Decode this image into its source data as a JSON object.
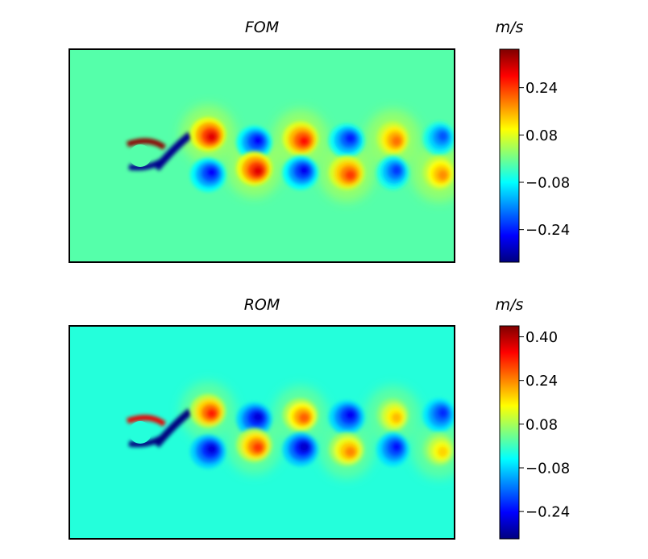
{
  "colorbar_colors": [
    "#00007f",
    "#0000ff",
    "#007fff",
    "#00ffff",
    "#7fff7f",
    "#ffff00",
    "#ff7f00",
    "#ff0000",
    "#7f0000"
  ],
  "chart_data": [
    {
      "type": "heatmap",
      "title": "FOM",
      "colorbar_label": "m/s",
      "colorbar_range": [
        -0.35,
        0.37
      ],
      "colorbar_ticks": [
        {
          "value": 0.24,
          "label": "0.24"
        },
        {
          "value": 0.08,
          "label": "0.08"
        },
        {
          "value": -0.08,
          "label": "−0.08"
        },
        {
          "value": -0.24,
          "label": "−0.24"
        }
      ],
      "background_value": -0.02,
      "wake_vortices": [
        {
          "x": 0.36,
          "y": 0.4,
          "value": 0.3
        },
        {
          "x": 0.36,
          "y": 0.59,
          "value": -0.26
        },
        {
          "x": 0.48,
          "y": 0.44,
          "value": -0.26
        },
        {
          "x": 0.48,
          "y": 0.56,
          "value": 0.3
        },
        {
          "x": 0.6,
          "y": 0.42,
          "value": 0.27
        },
        {
          "x": 0.6,
          "y": 0.58,
          "value": -0.27
        },
        {
          "x": 0.72,
          "y": 0.43,
          "value": -0.24
        },
        {
          "x": 0.72,
          "y": 0.58,
          "value": 0.24
        },
        {
          "x": 0.84,
          "y": 0.42,
          "value": 0.2
        },
        {
          "x": 0.84,
          "y": 0.58,
          "value": -0.22
        },
        {
          "x": 0.96,
          "y": 0.42,
          "value": -0.2
        },
        {
          "x": 0.96,
          "y": 0.58,
          "value": 0.18
        }
      ]
    },
    {
      "type": "heatmap",
      "title": "ROM",
      "colorbar_label": "m/s",
      "colorbar_range": [
        -0.34,
        0.44
      ],
      "colorbar_ticks": [
        {
          "value": 0.4,
          "label": "0.40"
        },
        {
          "value": 0.24,
          "label": "0.24"
        },
        {
          "value": 0.08,
          "label": "0.08"
        },
        {
          "value": -0.08,
          "label": "−0.08"
        },
        {
          "value": -0.24,
          "label": "−0.24"
        }
      ],
      "background_value": -0.02,
      "wake_vortices": [
        {
          "x": 0.36,
          "y": 0.4,
          "value": 0.32
        },
        {
          "x": 0.36,
          "y": 0.59,
          "value": -0.27
        },
        {
          "x": 0.48,
          "y": 0.44,
          "value": -0.27
        },
        {
          "x": 0.48,
          "y": 0.56,
          "value": 0.3
        },
        {
          "x": 0.6,
          "y": 0.42,
          "value": 0.27
        },
        {
          "x": 0.6,
          "y": 0.58,
          "value": -0.28
        },
        {
          "x": 0.72,
          "y": 0.43,
          "value": -0.25
        },
        {
          "x": 0.72,
          "y": 0.58,
          "value": 0.24
        },
        {
          "x": 0.84,
          "y": 0.42,
          "value": 0.2
        },
        {
          "x": 0.84,
          "y": 0.58,
          "value": -0.23
        },
        {
          "x": 0.96,
          "y": 0.42,
          "value": -0.21
        },
        {
          "x": 0.96,
          "y": 0.58,
          "value": 0.18
        }
      ]
    }
  ]
}
